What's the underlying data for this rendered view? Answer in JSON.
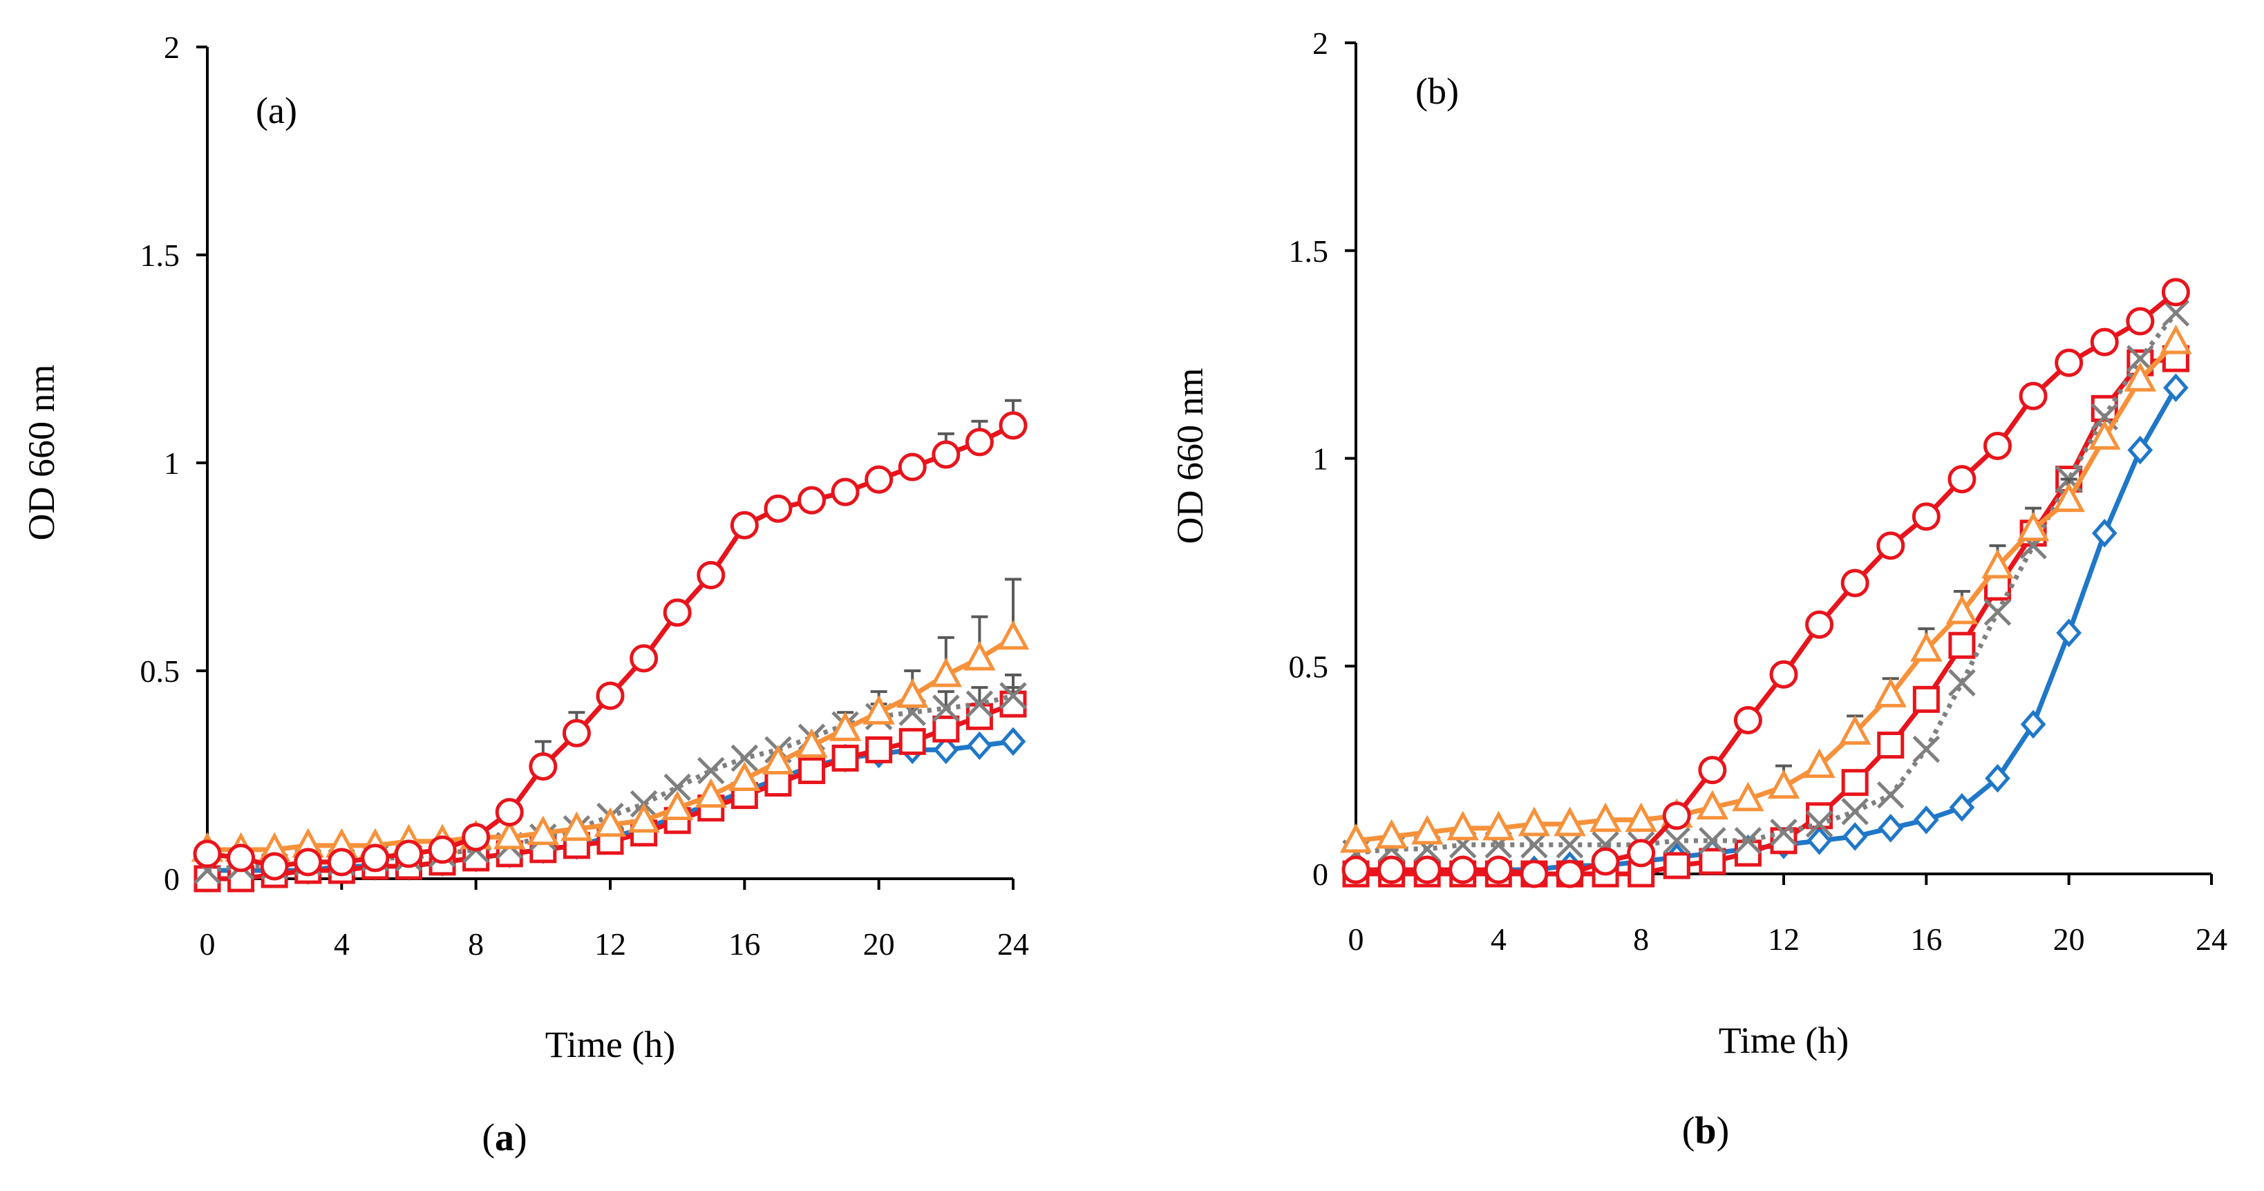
{
  "colors": {
    "blue": "#1F77C8",
    "red": "#E8141C",
    "orange": "#F7913A",
    "gray": "#7F7F7F",
    "axis": "#000000"
  },
  "chart_data": [
    {
      "type": "line",
      "panel_label": "(a)",
      "caption_parts": [
        "(",
        "a",
        ")"
      ],
      "xlabel": "Time (h)",
      "ylabel": "OD 660 nm",
      "xlim": [
        0,
        24
      ],
      "ylim": [
        0,
        2
      ],
      "xticks": [
        0,
        4,
        8,
        12,
        16,
        20,
        24
      ],
      "yticks": [
        0,
        0.5,
        1,
        1.5,
        2
      ],
      "ytick_labels": [
        "0",
        "0.5",
        "1",
        "1.5",
        "2"
      ],
      "grid": false,
      "x": [
        0,
        1,
        2,
        3,
        4,
        5,
        6,
        7,
        8,
        9,
        10,
        11,
        12,
        13,
        14,
        15,
        16,
        17,
        18,
        19,
        20,
        21,
        22,
        23,
        24
      ],
      "series": [
        {
          "name": "blue-diamond",
          "color": "blue",
          "marker": "diamond",
          "dash": "",
          "values": [
            0.02,
            0.02,
            0.02,
            0.02,
            0.03,
            0.03,
            0.03,
            0.04,
            0.05,
            0.06,
            0.07,
            0.08,
            0.1,
            0.12,
            0.15,
            0.18,
            0.21,
            0.24,
            0.27,
            0.29,
            0.3,
            0.31,
            0.31,
            0.32,
            0.33
          ],
          "errors": [
            0,
            0,
            0,
            0,
            0,
            0,
            0,
            0,
            0,
            0,
            0,
            0,
            0,
            0,
            0,
            0,
            0,
            0,
            0,
            0,
            0,
            0,
            0,
            0,
            0
          ]
        },
        {
          "name": "red-square",
          "color": "red",
          "marker": "square",
          "dash": "",
          "values": [
            0.0,
            0.0,
            0.01,
            0.02,
            0.02,
            0.03,
            0.03,
            0.04,
            0.05,
            0.06,
            0.07,
            0.08,
            0.09,
            0.11,
            0.14,
            0.17,
            0.2,
            0.23,
            0.26,
            0.29,
            0.31,
            0.33,
            0.36,
            0.39,
            0.42
          ],
          "errors": [
            0,
            0,
            0,
            0,
            0,
            0,
            0,
            0,
            0,
            0,
            0,
            0,
            0,
            0,
            0,
            0,
            0,
            0,
            0,
            0,
            0,
            0,
            0,
            0.03,
            0.04
          ]
        },
        {
          "name": "gray-cross",
          "color": "gray",
          "marker": "x",
          "dash": "6 8",
          "values": [
            0.02,
            0.03,
            0.03,
            0.04,
            0.04,
            0.05,
            0.05,
            0.06,
            0.07,
            0.08,
            0.1,
            0.12,
            0.15,
            0.18,
            0.22,
            0.26,
            0.29,
            0.31,
            0.34,
            0.37,
            0.39,
            0.4,
            0.41,
            0.42,
            0.44
          ],
          "errors": [
            0,
            0,
            0,
            0,
            0,
            0,
            0,
            0,
            0,
            0,
            0,
            0,
            0,
            0,
            0,
            0,
            0,
            0,
            0,
            0,
            0.03,
            0.03,
            0.04,
            0.04,
            0.05
          ]
        },
        {
          "name": "orange-triangle",
          "color": "orange",
          "marker": "triangle",
          "dash": "",
          "values": [
            0.07,
            0.07,
            0.07,
            0.08,
            0.08,
            0.08,
            0.09,
            0.09,
            0.1,
            0.1,
            0.11,
            0.12,
            0.13,
            0.14,
            0.17,
            0.2,
            0.24,
            0.28,
            0.32,
            0.36,
            0.4,
            0.44,
            0.49,
            0.53,
            0.58
          ],
          "errors": [
            0,
            0,
            0,
            0,
            0,
            0,
            0,
            0,
            0,
            0,
            0,
            0,
            0,
            0,
            0,
            0,
            0,
            0,
            0,
            0.04,
            0.05,
            0.06,
            0.09,
            0.1,
            0.14
          ]
        },
        {
          "name": "red-circle",
          "color": "red",
          "marker": "circle",
          "dash": "",
          "values": [
            0.06,
            0.05,
            0.03,
            0.04,
            0.04,
            0.05,
            0.06,
            0.07,
            0.1,
            0.16,
            0.27,
            0.35,
            0.44,
            0.53,
            0.64,
            0.73,
            0.85,
            0.89,
            0.91,
            0.93,
            0.96,
            0.99,
            1.02,
            1.05,
            1.09
          ],
          "errors": [
            0,
            0,
            0,
            0,
            0,
            0,
            0,
            0,
            0,
            0,
            0.06,
            0.05,
            0,
            0,
            0,
            0,
            0,
            0,
            0,
            0,
            0,
            0,
            0.05,
            0.05,
            0.06
          ]
        }
      ]
    },
    {
      "type": "line",
      "panel_label": "(b)",
      "caption_parts": [
        "(",
        "b",
        ")"
      ],
      "xlabel": "Time (h)",
      "ylabel": "OD 660 nm",
      "xlim": [
        0,
        24
      ],
      "ylim": [
        0,
        2
      ],
      "xticks": [
        0,
        4,
        8,
        12,
        16,
        20,
        24
      ],
      "yticks": [
        0,
        0.5,
        1,
        1.5,
        2
      ],
      "ytick_labels": [
        "0",
        "0.5",
        "1",
        "1.5",
        "2"
      ],
      "grid": false,
      "x": [
        0,
        1,
        2,
        3,
        4,
        5,
        6,
        7,
        8,
        9,
        10,
        11,
        12,
        13,
        14,
        15,
        16,
        17,
        18,
        19,
        20,
        21,
        22,
        23
      ],
      "series": [
        {
          "name": "blue-diamond",
          "color": "blue",
          "marker": "diamond",
          "dash": "",
          "values": [
            0.01,
            0.01,
            0.01,
            0.01,
            0.01,
            0.01,
            0.02,
            0.02,
            0.03,
            0.04,
            0.05,
            0.06,
            0.07,
            0.08,
            0.09,
            0.11,
            0.13,
            0.16,
            0.23,
            0.36,
            0.58,
            0.82,
            1.02,
            1.17
          ],
          "errors": [
            0,
            0,
            0,
            0,
            0,
            0,
            0,
            0,
            0,
            0,
            0,
            0,
            0,
            0,
            0,
            0,
            0,
            0,
            0,
            0,
            0,
            0,
            0,
            0
          ]
        },
        {
          "name": "red-square",
          "color": "red",
          "marker": "square",
          "dash": "",
          "values": [
            0.0,
            0.0,
            0.0,
            0.0,
            0.0,
            0.0,
            0.0,
            0.0,
            0.0,
            0.02,
            0.03,
            0.05,
            0.08,
            0.14,
            0.22,
            0.31,
            0.42,
            0.55,
            0.69,
            0.82,
            0.95,
            1.12,
            1.23,
            1.24
          ],
          "errors": [
            0,
            0,
            0,
            0,
            0,
            0,
            0,
            0,
            0,
            0,
            0,
            0,
            0,
            0,
            0,
            0,
            0,
            0,
            0,
            0,
            0,
            0,
            0,
            0
          ]
        },
        {
          "name": "gray-cross",
          "color": "gray",
          "marker": "x",
          "dash": "6 8",
          "values": [
            0.05,
            0.06,
            0.06,
            0.07,
            0.07,
            0.07,
            0.07,
            0.07,
            0.07,
            0.08,
            0.08,
            0.08,
            0.1,
            0.12,
            0.15,
            0.19,
            0.3,
            0.46,
            0.63,
            0.79,
            0.95,
            1.1,
            1.24,
            1.35
          ],
          "errors": [
            0,
            0,
            0,
            0,
            0,
            0,
            0,
            0,
            0,
            0,
            0,
            0,
            0,
            0,
            0,
            0,
            0,
            0,
            0,
            0,
            0,
            0,
            0,
            0
          ]
        },
        {
          "name": "orange-triangle",
          "color": "orange",
          "marker": "triangle",
          "dash": "",
          "values": [
            0.08,
            0.09,
            0.1,
            0.11,
            0.11,
            0.12,
            0.12,
            0.13,
            0.13,
            0.14,
            0.16,
            0.18,
            0.21,
            0.26,
            0.34,
            0.43,
            0.54,
            0.63,
            0.74,
            0.83,
            0.9,
            1.05,
            1.19,
            1.28
          ],
          "errors": [
            0,
            0,
            0,
            0,
            0,
            0,
            0,
            0,
            0,
            0,
            0,
            0,
            0.05,
            0,
            0.04,
            0.04,
            0.05,
            0.05,
            0.05,
            0.05,
            0.05,
            0,
            0,
            0
          ]
        },
        {
          "name": "red-circle",
          "color": "red",
          "marker": "circle",
          "dash": "",
          "values": [
            0.01,
            0.01,
            0.01,
            0.01,
            0.01,
            0.0,
            0.0,
            0.03,
            0.05,
            0.14,
            0.25,
            0.37,
            0.48,
            0.6,
            0.7,
            0.79,
            0.86,
            0.95,
            1.03,
            1.15,
            1.23,
            1.28,
            1.33,
            1.4
          ],
          "errors": [
            0,
            0,
            0,
            0,
            0,
            0,
            0,
            0,
            0,
            0,
            0,
            0,
            0,
            0,
            0,
            0,
            0,
            0,
            0,
            0,
            0,
            0,
            0,
            0
          ]
        }
      ]
    }
  ]
}
